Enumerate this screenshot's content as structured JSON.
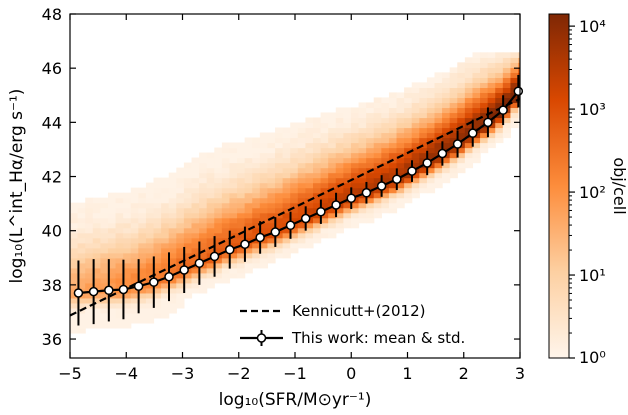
{
  "chart_data": {
    "type": "scatter",
    "xlabel": "log₁₀(SFR/M⊙yr⁻¹)",
    "ylabel": "log₁₀(L^int_Hα/erg s⁻¹)",
    "xlim": [
      -5,
      3
    ],
    "ylim": [
      35.3,
      48
    ],
    "xticks": [
      "−5",
      "−4",
      "−3",
      "−2",
      "−1",
      "0",
      "1",
      "2",
      "3"
    ],
    "yticks": [
      "36",
      "38",
      "40",
      "42",
      "44",
      "46",
      "48"
    ],
    "grid": false,
    "legend": {
      "placement": "lower-right",
      "entries": [
        "Kennicutt+(2012)",
        "This work: mean & std."
      ]
    },
    "colorbar": {
      "label": "obj/cell",
      "scale": "log",
      "range": [
        1,
        14000
      ],
      "ticks": [
        "10⁰",
        "10¹",
        "10²",
        "10³",
        "10⁴"
      ],
      "colormap": "Oranges",
      "colors": [
        "#fff5eb",
        "#fdd0a2",
        "#fd8d3c",
        "#d94801",
        "#7f2704"
      ]
    },
    "reference_line": {
      "name": "Kennicutt+(2012)",
      "x": [
        -5,
        3
      ],
      "y": [
        36.87,
        44.87
      ],
      "style": "dashed"
    },
    "series": [
      {
        "name": "This work: mean & std.",
        "x": [
          -4.85,
          -4.58,
          -4.31,
          -4.05,
          -3.78,
          -3.51,
          -3.24,
          -2.97,
          -2.7,
          -2.43,
          -2.16,
          -1.89,
          -1.62,
          -1.35,
          -1.08,
          -0.81,
          -0.54,
          -0.27,
          0.0,
          0.27,
          0.54,
          0.81,
          1.08,
          1.35,
          1.62,
          1.89,
          2.16,
          2.43,
          2.7,
          2.97
        ],
        "y": [
          37.7,
          37.75,
          37.8,
          37.83,
          37.95,
          38.1,
          38.3,
          38.55,
          38.8,
          39.05,
          39.3,
          39.5,
          39.75,
          39.95,
          40.2,
          40.45,
          40.7,
          40.95,
          41.2,
          41.4,
          41.65,
          41.9,
          42.2,
          42.5,
          42.85,
          43.2,
          43.6,
          44.0,
          44.45,
          45.15
        ],
        "yerr": [
          1.2,
          1.2,
          1.15,
          1.1,
          1.0,
          0.95,
          0.9,
          0.85,
          0.8,
          0.75,
          0.7,
          0.65,
          0.6,
          0.55,
          0.5,
          0.45,
          0.45,
          0.45,
          0.4,
          0.4,
          0.4,
          0.4,
          0.4,
          0.45,
          0.45,
          0.5,
          0.5,
          0.55,
          0.55,
          0.6
        ]
      }
    ]
  }
}
